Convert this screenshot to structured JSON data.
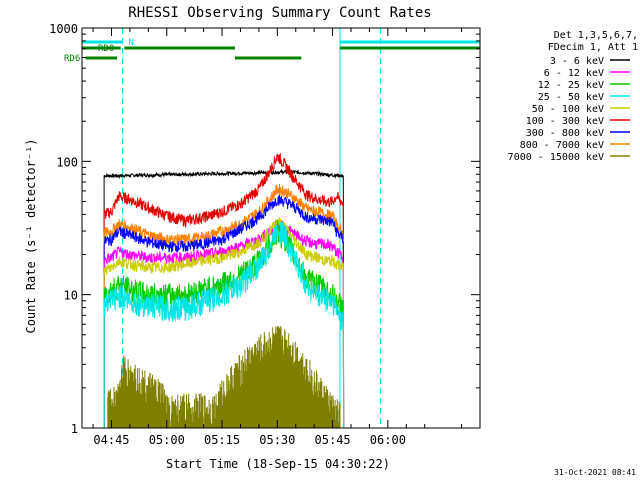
{
  "chart_data": {
    "type": "line",
    "title": "RHESSI Observing Summary Count Rates",
    "xlabel": "Start Time (18-Sep-15 04:30:22)",
    "ylabel": "Count Rate (s⁻¹ detector⁻¹)",
    "yscale": "log",
    "ylim": [
      1,
      1000
    ],
    "xlim_minutes": [
      -8,
      100
    ],
    "yticks": [
      1,
      10,
      100,
      1000
    ],
    "ytick_labels": [
      "1",
      "10",
      "100",
      "1000"
    ],
    "xticks": [
      "04:45",
      "05:00",
      "05:15",
      "05:30",
      "05:45",
      "06:00"
    ],
    "legend": {
      "position": "top-right",
      "header": [
        "Det 1,3,5,6,7,",
        "FDecim 1, Att 1"
      ],
      "entries": [
        {
          "label": "3 - 6 keV",
          "color": "#000000"
        },
        {
          "label": "6 - 12 keV",
          "color": "#ff00ff"
        },
        {
          "label": "12 - 25 keV",
          "color": "#00cc00"
        },
        {
          "label": "25 - 50 keV",
          "color": "#00e5e5"
        },
        {
          "label": "50 - 100 keV",
          "color": "#cccc00"
        },
        {
          "label": "100 - 300 keV",
          "color": "#e00000"
        },
        {
          "label": "300 - 800 keV",
          "color": "#0000ff"
        },
        {
          "label": "800 - 7000 keV",
          "color": "#ff8000"
        },
        {
          "label": "7000 - 15000 keV",
          "color": "#808000"
        }
      ]
    },
    "flag_bars": [
      {
        "label": "N",
        "color": "#00e5e5",
        "row": "N",
        "intervals": [
          [
            -8,
            3
          ],
          [
            62,
            100
          ]
        ]
      },
      {
        "label": "RD0",
        "color": "#008000",
        "row": "RD0",
        "intervals": [
          [
            -8,
            2.5
          ],
          [
            3.5,
            33.5
          ],
          [
            62,
            100
          ]
        ]
      },
      {
        "label": "RD6",
        "color": "#008000",
        "row": "RD6",
        "intervals": [
          [
            -7,
            1.5
          ],
          [
            33.5,
            51.5
          ]
        ]
      }
    ],
    "marker_lines": [
      {
        "minute": -8,
        "style": "solid",
        "color": "#00e5e5"
      },
      {
        "minute": 3,
        "style": "dashed",
        "color": "#00e5e5"
      },
      {
        "minute": 62,
        "style": "solid",
        "color": "#00e5e5"
      },
      {
        "minute": 73,
        "style": "dashed",
        "color": "#00e5e5"
      }
    ],
    "data_window_minutes": [
      -2,
      63
    ],
    "series": [
      {
        "name": "3 - 6 keV",
        "x": [
          -2,
          2,
          10,
          20,
          30,
          40,
          45,
          50,
          55,
          62
        ],
        "y": [
          78,
          78,
          79,
          80,
          81,
          82,
          83,
          83,
          81,
          78
        ]
      },
      {
        "name": "100 - 300 keV",
        "x": [
          -2,
          0,
          2,
          5,
          10,
          15,
          20,
          25,
          30,
          35,
          40,
          43,
          45,
          47,
          50,
          53,
          56,
          58,
          60,
          61,
          63
        ],
        "y": [
          40,
          42,
          55,
          52,
          45,
          39,
          36,
          38,
          42,
          48,
          62,
          85,
          110,
          95,
          72,
          56,
          52,
          50,
          50,
          55,
          48
        ]
      },
      {
        "name": "800 - 7000 keV",
        "x": [
          -2,
          0,
          2,
          5,
          10,
          15,
          20,
          25,
          30,
          35,
          40,
          43,
          45,
          47,
          50,
          53,
          56,
          58,
          60,
          61,
          63
        ],
        "y": [
          29,
          30,
          34,
          32,
          28,
          26,
          26,
          27,
          30,
          34,
          42,
          52,
          62,
          60,
          52,
          44,
          42,
          40,
          39,
          34,
          28
        ]
      },
      {
        "name": "300 - 800 keV",
        "x": [
          -2,
          0,
          2,
          5,
          10,
          15,
          20,
          25,
          30,
          35,
          40,
          43,
          45,
          47,
          50,
          53,
          56,
          58,
          60,
          61,
          63
        ],
        "y": [
          25,
          26,
          30,
          28,
          25,
          23,
          23,
          24,
          26,
          31,
          38,
          46,
          52,
          50,
          45,
          38,
          37,
          36,
          35,
          30,
          26
        ]
      },
      {
        "name": "6 - 12 keV",
        "x": [
          -2,
          0,
          2,
          5,
          10,
          15,
          20,
          25,
          30,
          35,
          40,
          43,
          45,
          47,
          50,
          53,
          56,
          58,
          60,
          61,
          63
        ],
        "y": [
          18,
          19,
          21,
          20,
          19,
          19,
          19,
          20,
          21,
          23,
          26,
          30,
          34,
          32,
          28,
          25,
          24,
          24,
          23,
          21,
          19
        ]
      },
      {
        "name": "50 - 100 keV",
        "x": [
          -2,
          0,
          2,
          5,
          10,
          15,
          20,
          25,
          30,
          35,
          40,
          43,
          45,
          47,
          50,
          53,
          56,
          58,
          60,
          61,
          63
        ],
        "y": [
          15,
          16,
          18,
          17,
          16,
          16,
          17,
          18,
          19,
          21,
          25,
          30,
          36,
          32,
          25,
          20,
          19,
          18,
          18,
          17,
          16
        ]
      },
      {
        "name": "12 - 25 keV",
        "x": [
          -2,
          0,
          2,
          5,
          10,
          15,
          20,
          25,
          30,
          35,
          40,
          43,
          45,
          47,
          50,
          53,
          56,
          58,
          60,
          61,
          63
        ],
        "y": [
          10,
          11,
          12,
          11,
          10,
          10,
          10,
          11,
          12,
          14,
          18,
          24,
          30,
          27,
          19,
          13,
          12,
          11,
          10,
          9,
          8
        ]
      },
      {
        "name": "25 - 50 keV",
        "x": [
          -2,
          0,
          2,
          5,
          10,
          15,
          20,
          25,
          30,
          35,
          40,
          43,
          45,
          47,
          50,
          53,
          56,
          58,
          60,
          61,
          63
        ],
        "y": [
          8,
          9,
          10,
          9,
          8.5,
          8,
          8,
          9,
          10,
          12,
          17,
          23,
          32,
          28,
          18,
          12,
          10,
          9.5,
          9,
          8,
          6
        ]
      },
      {
        "name": "7000 - 15000 keV",
        "x": [
          -1,
          2,
          3,
          14,
          15,
          28,
          30,
          32,
          34,
          36,
          38,
          40,
          42,
          44,
          46,
          48,
          50,
          52,
          54,
          56,
          58,
          60,
          62
        ],
        "y": [
          1.7,
          1.7,
          2.8,
          1.7,
          1.4,
          1.4,
          1.8,
          2.2,
          2.6,
          3.0,
          3.5,
          3.8,
          4.2,
          4.6,
          4.6,
          4.2,
          3.6,
          3.0,
          2.5,
          2.0,
          1.7,
          1.4,
          1.2
        ]
      }
    ],
    "footer": "31-Oct-2021 08:41",
    "grid": false
  }
}
